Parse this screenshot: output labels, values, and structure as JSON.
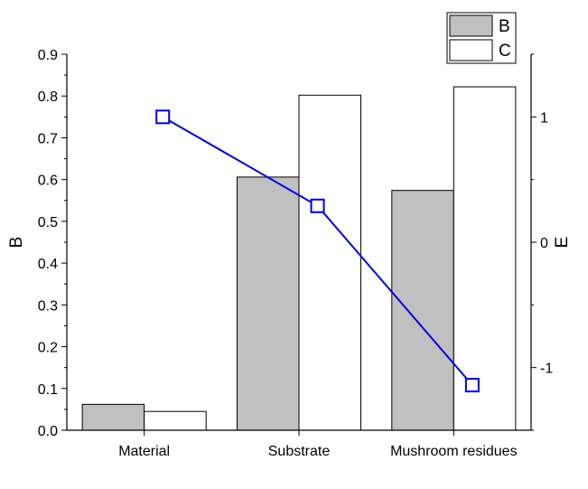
{
  "chart_data": {
    "type": "bar",
    "categories": [
      "Material",
      "Substrate",
      "Mushroom residues"
    ],
    "series": [
      {
        "name": "B",
        "axis": "left",
        "kind": "bar",
        "values": [
          0.062,
          0.606,
          0.574
        ],
        "color": "#c0c0c0"
      },
      {
        "name": "C",
        "axis": "left",
        "kind": "bar",
        "values": [
          0.045,
          0.802,
          0.822
        ],
        "color": "#ffffff"
      },
      {
        "name": "",
        "axis": "right",
        "kind": "line",
        "values": [
          1.0,
          0.29,
          -1.14
        ],
        "color": "#0000e0"
      }
    ],
    "ylabel": "B",
    "ylim": [
      0,
      0.9
    ],
    "yticks": [
      "0.0",
      "0.1",
      "0.2",
      "0.3",
      "0.4",
      "0.5",
      "0.6",
      "0.7",
      "0.8",
      "0.9"
    ],
    "y2label": "E",
    "y2lim": [
      -1.5,
      1.5
    ],
    "y2ticks": [
      "-1",
      "0",
      "1"
    ],
    "legend": {
      "placement": "top-right",
      "entries": [
        "B",
        "C"
      ]
    },
    "grid": false
  }
}
